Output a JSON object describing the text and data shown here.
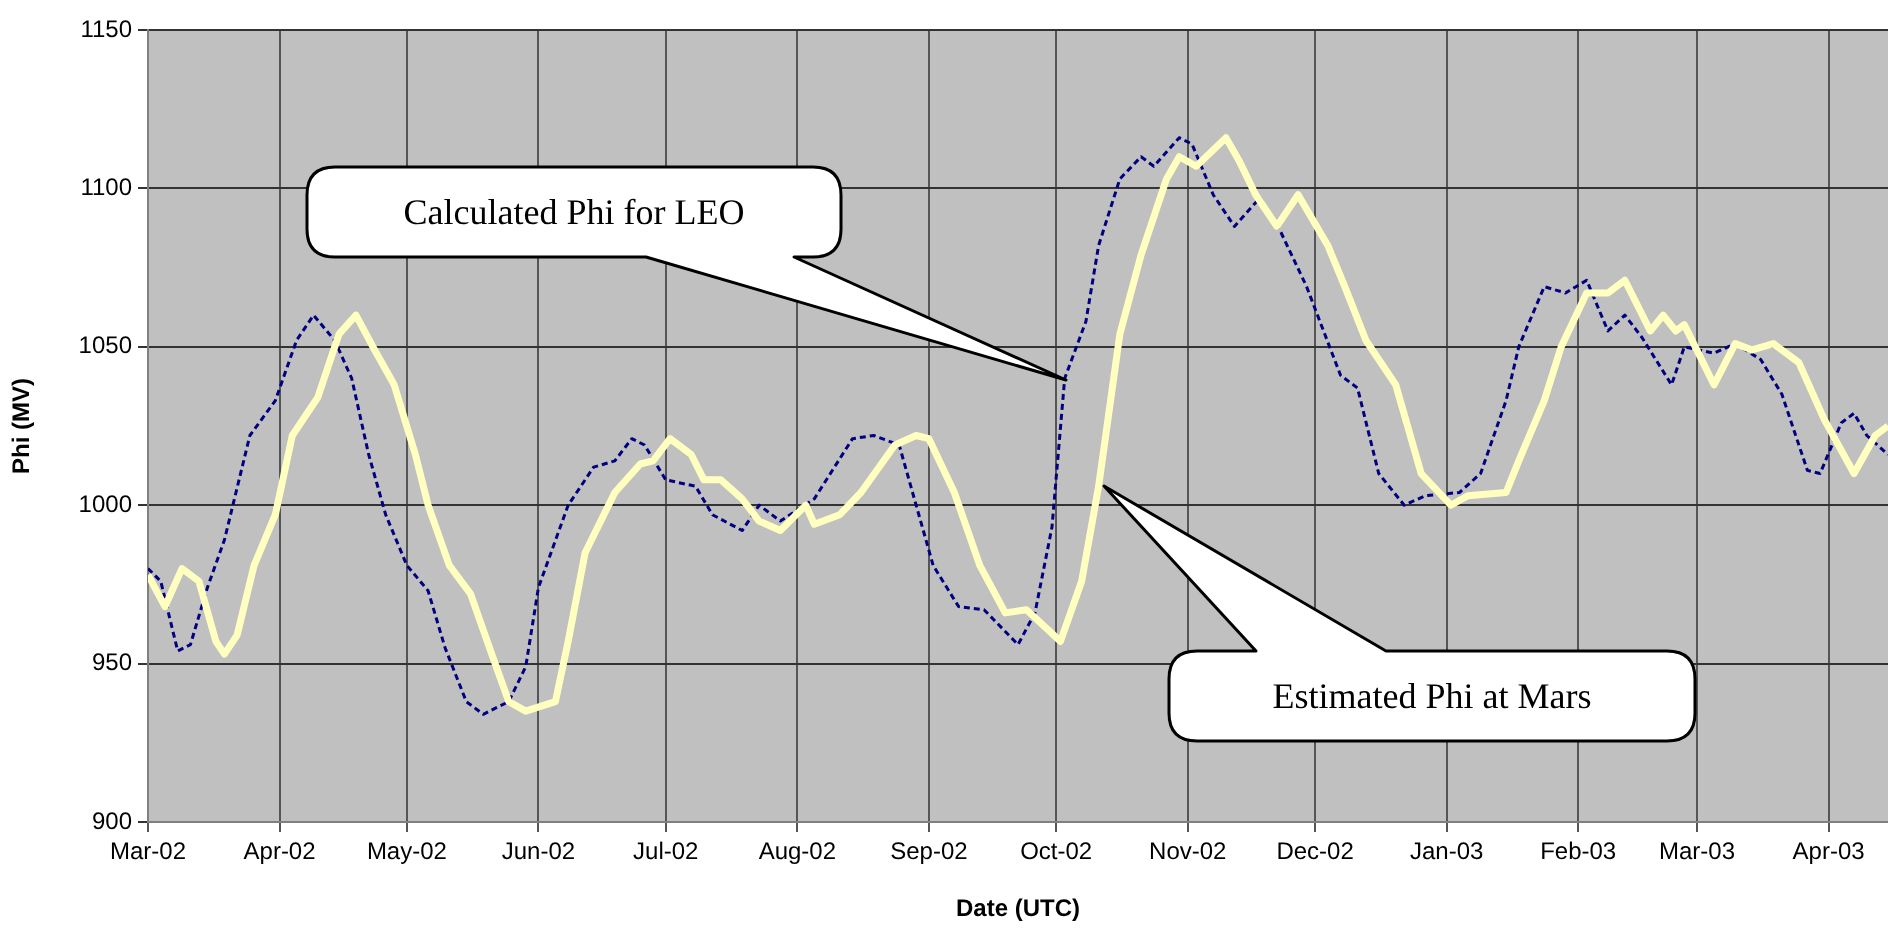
{
  "chart_data": {
    "type": "line",
    "xlabel": "Date (UTC)",
    "ylabel": "Phi (MV)",
    "xlim": [
      "2002-03-01",
      "2003-04-15"
    ],
    "xticks": [
      {
        "value": "2002-03-01",
        "label": "Mar-02"
      },
      {
        "value": "2002-04-01",
        "label": "Apr-02"
      },
      {
        "value": "2002-05-01",
        "label": "May-02"
      },
      {
        "value": "2002-06-01",
        "label": "Jun-02"
      },
      {
        "value": "2002-07-01",
        "label": "Jul-02"
      },
      {
        "value": "2002-08-01",
        "label": "Aug-02"
      },
      {
        "value": "2002-09-01",
        "label": "Sep-02"
      },
      {
        "value": "2002-10-01",
        "label": "Oct-02"
      },
      {
        "value": "2002-11-01",
        "label": "Nov-02"
      },
      {
        "value": "2002-12-01",
        "label": "Dec-02"
      },
      {
        "value": "2003-01-01",
        "label": "Jan-03"
      },
      {
        "value": "2003-02-01",
        "label": "Feb-03"
      },
      {
        "value": "2003-03-01",
        "label": "Mar-03"
      },
      {
        "value": "2003-04-01",
        "label": "Apr-03"
      }
    ],
    "ylim": [
      900,
      1150
    ],
    "yticks": [
      900,
      950,
      1000,
      1050,
      1100,
      1150
    ],
    "grid": true,
    "legend": false,
    "marker": "none",
    "annotations": [
      "Calculated Phi for LEO",
      "Estimated Phi at Mars"
    ],
    "series": [
      {
        "color": "#000080",
        "line_style": "dashed",
        "x": [
          "2002-03-01",
          "2002-03-04",
          "2002-03-08",
          "2002-03-11",
          "2002-03-15",
          "2002-03-19",
          "2002-03-25",
          "2002-03-31",
          "2002-04-05",
          "2002-04-09",
          "2002-04-14",
          "2002-04-18",
          "2002-04-22",
          "2002-04-26",
          "2002-05-01",
          "2002-05-06",
          "2002-05-10",
          "2002-05-15",
          "2002-05-19",
          "2002-05-25",
          "2002-05-29",
          "2002-06-01",
          "2002-06-08",
          "2002-06-14",
          "2002-06-19",
          "2002-06-23",
          "2002-06-26",
          "2002-07-01",
          "2002-07-08",
          "2002-07-12",
          "2002-07-19",
          "2002-07-23",
          "2002-07-28",
          "2002-08-05",
          "2002-08-14",
          "2002-08-19",
          "2002-08-25",
          "2002-08-29",
          "2002-09-02",
          "2002-09-08",
          "2002-09-14",
          "2002-09-22",
          "2002-09-26",
          "2002-09-30",
          "2002-10-03",
          "2002-10-08",
          "2002-10-11",
          "2002-10-16",
          "2002-10-21",
          "2002-10-24",
          "2002-10-30",
          "2002-11-02",
          "2002-11-07",
          "2002-11-12",
          "2002-11-18",
          "2002-11-23",
          "2002-11-29",
          "2002-12-07",
          "2002-12-11",
          "2002-12-16",
          "2002-12-22",
          "2002-12-27",
          "2003-01-04",
          "2003-01-09",
          "2003-01-15",
          "2003-01-18",
          "2003-01-24",
          "2003-01-29",
          "2003-02-03",
          "2003-02-08",
          "2003-02-12",
          "2003-02-16",
          "2003-02-23",
          "2003-02-26",
          "2003-03-05",
          "2003-03-10",
          "2003-03-16",
          "2003-03-21",
          "2003-03-27",
          "2003-03-30",
          "2003-04-04",
          "2003-04-07",
          "2003-04-10",
          "2003-04-15"
        ],
        "values": [
          980,
          976,
          954,
          956,
          974,
          989,
          1022,
          1033,
          1052,
          1060,
          1052,
          1040,
          1016,
          997,
          981,
          973,
          955,
          938,
          934,
          938,
          949,
          974,
          1000,
          1012,
          1014,
          1021,
          1019,
          1008,
          1006,
          997,
          992,
          1000,
          995,
          1002,
          1021,
          1022,
          1019,
          1000,
          981,
          968,
          967,
          956,
          966,
          993,
          1040,
          1058,
          1082,
          1103,
          1110,
          1107,
          1116,
          1114,
          1098,
          1088,
          1097,
          1086,
          1069,
          1041,
          1037,
          1010,
          1000,
          1003,
          1004,
          1010,
          1033,
          1050,
          1069,
          1067,
          1071,
          1055,
          1060,
          1053,
          1038,
          1050,
          1048,
          1051,
          1046,
          1035,
          1011,
          1010,
          1026,
          1029,
          1022,
          1016
        ]
      },
      {
        "color": "#ffffc0",
        "line_style": "solid",
        "x": [
          "2002-03-01",
          "2002-03-05",
          "2002-03-09",
          "2002-03-13",
          "2002-03-17",
          "2002-03-19",
          "2002-03-22",
          "2002-03-26",
          "2002-03-31",
          "2002-04-04",
          "2002-04-10",
          "2002-04-15",
          "2002-04-19",
          "2002-04-23",
          "2002-04-28",
          "2002-05-03",
          "2002-05-06",
          "2002-05-11",
          "2002-05-16",
          "2002-05-21",
          "2002-05-25",
          "2002-05-29",
          "2002-06-05",
          "2002-06-08",
          "2002-06-12",
          "2002-06-19",
          "2002-06-25",
          "2002-06-28",
          "2002-07-02",
          "2002-07-07",
          "2002-07-10",
          "2002-07-14",
          "2002-07-19",
          "2002-07-23",
          "2002-07-28",
          "2002-08-03",
          "2002-08-05",
          "2002-08-11",
          "2002-08-16",
          "2002-08-24",
          "2002-08-29",
          "2002-09-01",
          "2002-09-07",
          "2002-09-13",
          "2002-09-19",
          "2002-09-24",
          "2002-10-02",
          "2002-10-07",
          "2002-10-11",
          "2002-10-16",
          "2002-10-21",
          "2002-10-27",
          "2002-10-30",
          "2002-11-03",
          "2002-11-10",
          "2002-11-13",
          "2002-11-17",
          "2002-11-22",
          "2002-11-27",
          "2002-12-04",
          "2002-12-08",
          "2002-12-13",
          "2002-12-20",
          "2002-12-26",
          "2003-01-02",
          "2003-01-06",
          "2003-01-15",
          "2003-01-18",
          "2003-01-24",
          "2003-01-28",
          "2003-02-03",
          "2003-02-08",
          "2003-02-12",
          "2003-02-18",
          "2003-02-21",
          "2003-02-24",
          "2003-02-26",
          "2003-03-05",
          "2003-03-10",
          "2003-03-14",
          "2003-03-19",
          "2003-03-25",
          "2003-03-31",
          "2003-04-07",
          "2003-04-12",
          "2003-04-15"
        ],
        "values": [
          978,
          968,
          980,
          976,
          957,
          953,
          959,
          981,
          997,
          1022,
          1034,
          1054,
          1060,
          1050,
          1038,
          1016,
          1000,
          981,
          972,
          953,
          938,
          935,
          938,
          957,
          985,
          1004,
          1013,
          1014,
          1021,
          1016,
          1008,
          1008,
          1002,
          995,
          992,
          1000,
          994,
          997,
          1004,
          1019,
          1022,
          1021,
          1004,
          981,
          966,
          967,
          957,
          976,
          1006,
          1054,
          1079,
          1103,
          1110,
          1107,
          1116,
          1109,
          1098,
          1088,
          1098,
          1082,
          1069,
          1052,
          1038,
          1010,
          1000,
          1003,
          1004,
          1014,
          1033,
          1050,
          1067,
          1067,
          1071,
          1055,
          1060,
          1055,
          1057,
          1038,
          1051,
          1049,
          1051,
          1045,
          1027,
          1010,
          1022,
          1025
        ]
      }
    ]
  }
}
